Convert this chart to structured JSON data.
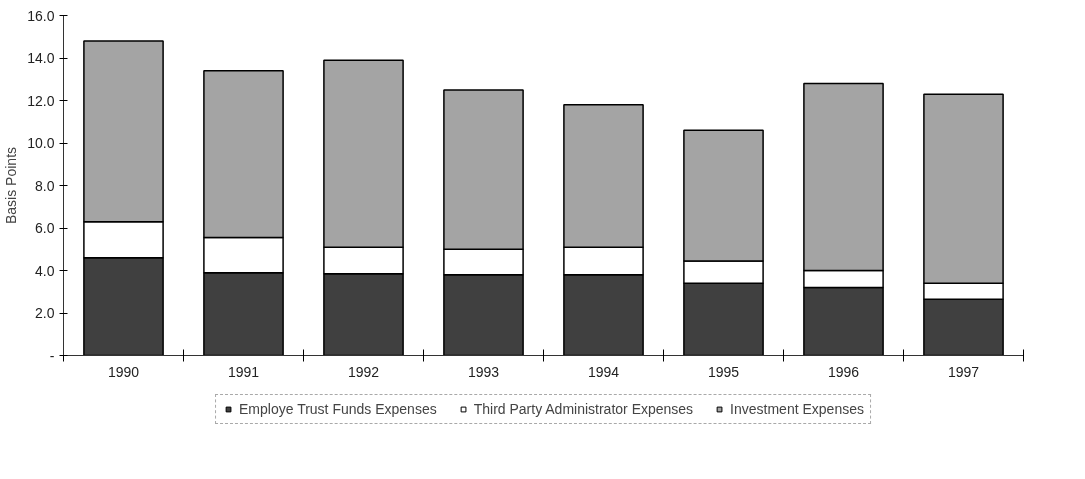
{
  "chart_data": {
    "type": "bar",
    "stacked": true,
    "ylabel": "Basis Points",
    "categories": [
      "1990",
      "1991",
      "1992",
      "1993",
      "1994",
      "1995",
      "1996",
      "1997"
    ],
    "series": [
      {
        "name": "Employe Trust Funds Expenses",
        "color": "#404040",
        "values": [
          4.6,
          3.9,
          3.85,
          3.8,
          3.8,
          3.4,
          3.2,
          2.65
        ]
      },
      {
        "name": "Third Party Administrator Expenses",
        "color": "#ffffff",
        "values": [
          1.7,
          1.65,
          1.25,
          1.2,
          1.3,
          1.05,
          0.8,
          0.75
        ]
      },
      {
        "name": "Investment Expenses",
        "color": "#a4a4a4",
        "values": [
          8.5,
          7.85,
          8.8,
          7.5,
          6.7,
          6.15,
          8.8,
          8.9
        ]
      }
    ],
    "ylim": [
      0,
      16
    ],
    "yticks": [
      {
        "value": 0,
        "label": "-"
      },
      {
        "value": 2,
        "label": "2.0"
      },
      {
        "value": 4,
        "label": "4.0"
      },
      {
        "value": 6,
        "label": "6.0"
      },
      {
        "value": 8,
        "label": "8.0"
      },
      {
        "value": 10,
        "label": "10.0"
      },
      {
        "value": 12,
        "label": "12.0"
      },
      {
        "value": 14,
        "label": "14.0"
      },
      {
        "value": 16,
        "label": "16.0"
      }
    ],
    "grid": false,
    "legend": "bottom"
  }
}
